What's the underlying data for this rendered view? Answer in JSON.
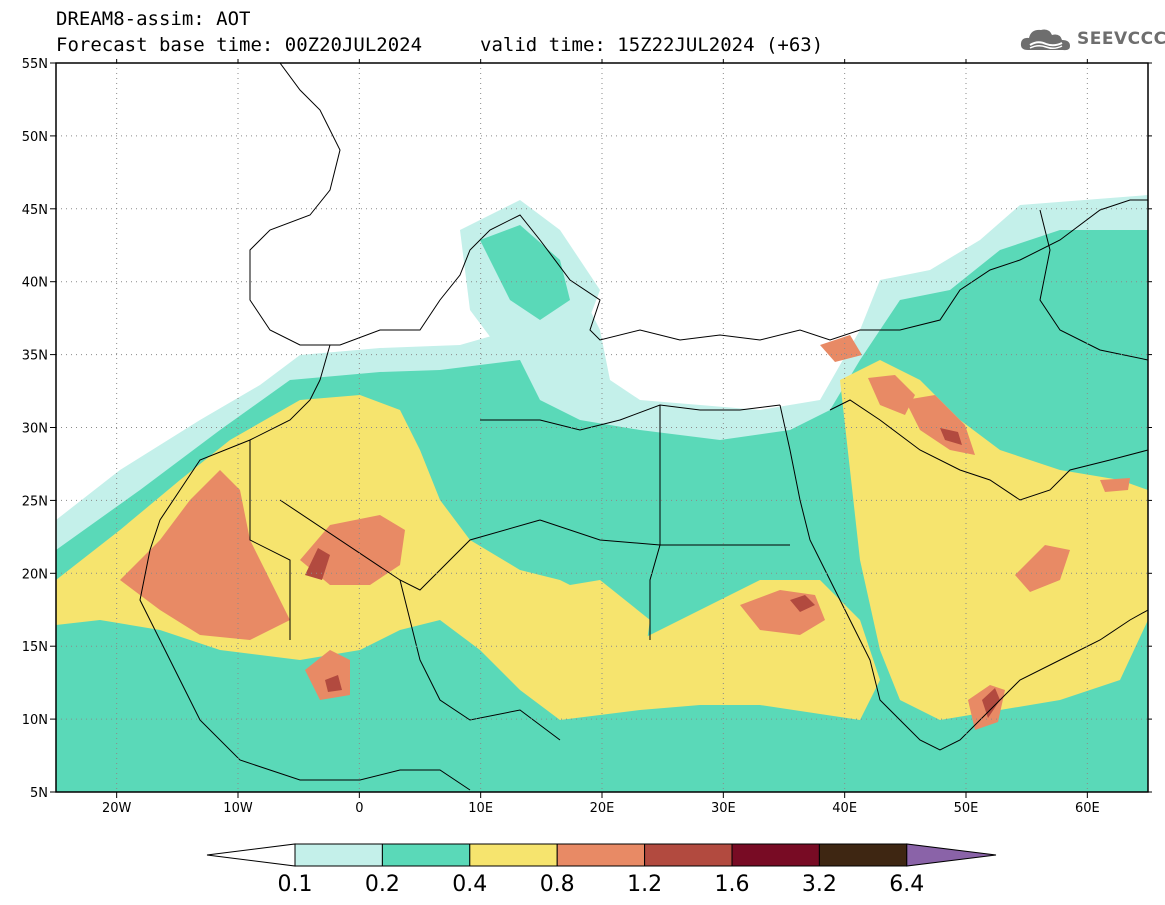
{
  "header": {
    "title_line1": "DREAM8-assim: AOT",
    "title_line2": "Forecast base time: 00Z20JUL2024",
    "valid_time": "valid time: 15Z22JUL2024 (+63)",
    "logo_text": "SEEVCCC"
  },
  "map": {
    "lon_range": [
      -25,
      65
    ],
    "lat_range": [
      5,
      55
    ],
    "lat_ticks": [
      "55N",
      "50N",
      "45N",
      "40N",
      "35N",
      "30N",
      "25N",
      "20N",
      "15N",
      "10N",
      "5N"
    ],
    "lon_ticks": [
      "20W",
      "10W",
      "0",
      "10E",
      "20E",
      "30E",
      "40E",
      "50E",
      "60E"
    ],
    "grid": "dotted"
  },
  "colorbar": {
    "labels": [
      "0.1",
      "0.2",
      "0.4",
      "0.8",
      "1.2",
      "1.6",
      "3.2",
      "6.4"
    ],
    "colors": [
      "#c4f0ea",
      "#5ad9b8",
      "#f6e46e",
      "#e88a65",
      "#b24a3f",
      "#780b24",
      "#3e2612",
      "#8a63a8"
    ],
    "below_color": "#ffffff"
  }
}
